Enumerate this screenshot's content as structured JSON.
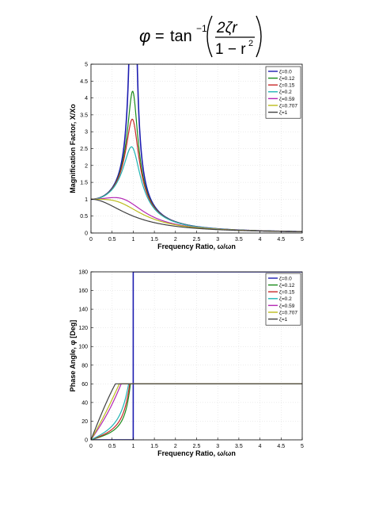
{
  "formula": {
    "lhs": "φ",
    "eq": "=",
    "func": "tan",
    "sup": "−1",
    "num": "2ζr",
    "den": "1 − r",
    "den_sup": "2"
  },
  "colors": {
    "series": [
      "#1c1cb0",
      "#1a8a1a",
      "#c82828",
      "#20b4b4",
      "#b428b4",
      "#bcbc1c",
      "#404040"
    ],
    "axes": "#000000",
    "grid": "#d8d8d8"
  },
  "chart_data": [
    {
      "type": "line",
      "title": "",
      "xlabel": "Frequency Ratio, ω/ωn",
      "ylabel": "Magnification Factor, X/Xo",
      "xlim": [
        0,
        5
      ],
      "ylim": [
        0,
        5
      ],
      "x_ticks": [
        "0",
        "0.5",
        "1",
        "1.5",
        "2",
        "2.5",
        "3",
        "3.5",
        "4",
        "4.5",
        "5"
      ],
      "y_ticks": [
        "0",
        "0.5",
        "1",
        "1.5",
        "2",
        "2.5",
        "3",
        "3.5",
        "4",
        "4.5",
        "5"
      ],
      "grid": true,
      "legend_position": "top-right",
      "zetas": [
        0.0,
        0.12,
        0.15,
        0.2,
        0.59,
        0.707,
        1
      ],
      "series": [
        {
          "name": "ζ=0.0"
        },
        {
          "name": "ζ=0.12"
        },
        {
          "name": "ζ=0.15"
        },
        {
          "name": "ζ=0.2"
        },
        {
          "name": "ζ=0.59"
        },
        {
          "name": "ζ=0.707"
        },
        {
          "name": "ζ=1"
        }
      ]
    },
    {
      "type": "line",
      "title": "",
      "xlabel": "Frequency Ratio, ω/ωn",
      "ylabel": "Phase Angle, φ [Deg]",
      "xlim": [
        0,
        5
      ],
      "ylim": [
        0,
        180
      ],
      "x_ticks": [
        "0",
        "0.5",
        "1",
        "1.5",
        "2",
        "2.5",
        "3",
        "3.5",
        "4",
        "4.5",
        "5"
      ],
      "y_ticks": [
        "0",
        "20",
        "40",
        "60",
        "80",
        "100",
        "120",
        "140",
        "160",
        "180"
      ],
      "grid": true,
      "legend_position": "top-right",
      "zetas": [
        0.0,
        0.12,
        0.15,
        0.2,
        0.59,
        0.707,
        1
      ],
      "series": [
        {
          "name": "ζ=0.0"
        },
        {
          "name": "ζ=0.12"
        },
        {
          "name": "ζ=0.15"
        },
        {
          "name": "ζ=0.2"
        },
        {
          "name": "ζ=0.59"
        },
        {
          "name": "ζ=0.707"
        },
        {
          "name": "ζ=1"
        }
      ]
    }
  ]
}
